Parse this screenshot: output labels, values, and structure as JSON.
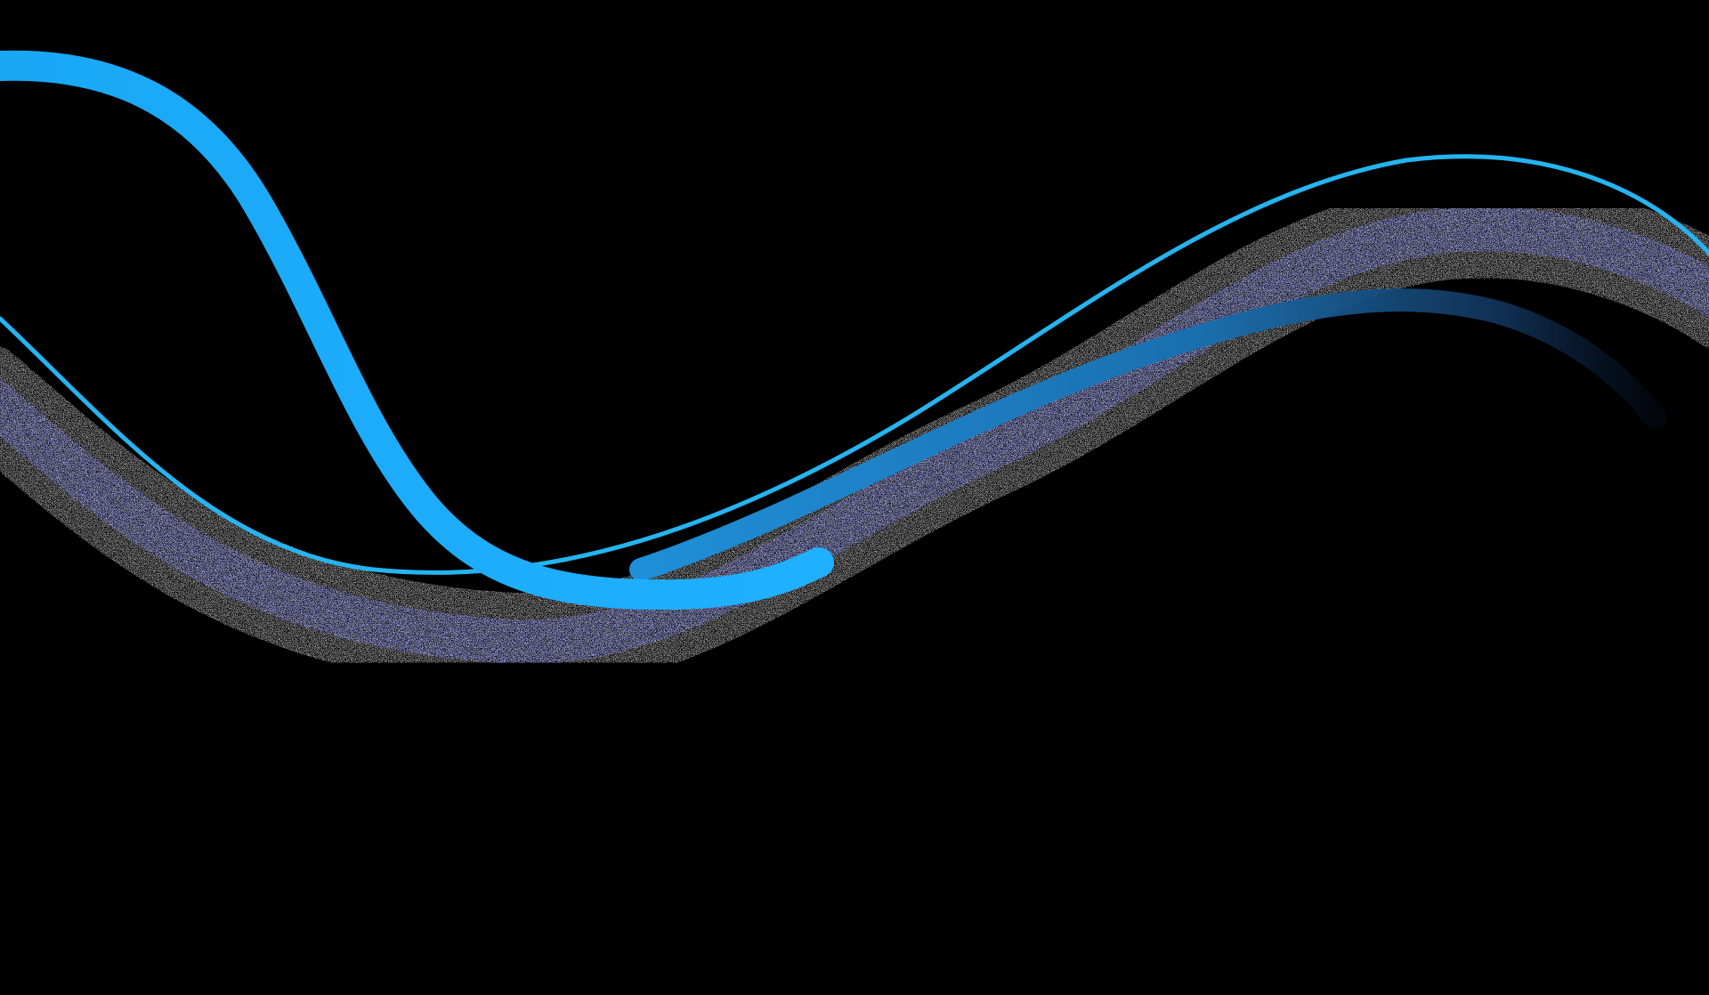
{
  "background_color": "#000000",
  "waves": [
    {
      "name": "thick-light-blue-wave",
      "color": "#1aa8f5",
      "style": "solid"
    },
    {
      "name": "thin-light-blue-wave",
      "color": "#25b4f0",
      "style": "solid"
    },
    {
      "name": "gradient-blue-wave",
      "color_start": "#1f8fd8",
      "color_end": "#0a1f3c",
      "style": "gradient-fade"
    },
    {
      "name": "noise-speckled-band",
      "color_primary": "#3a3cff",
      "color_noise": "#9a9a9a",
      "style": "grainy-noise"
    }
  ]
}
